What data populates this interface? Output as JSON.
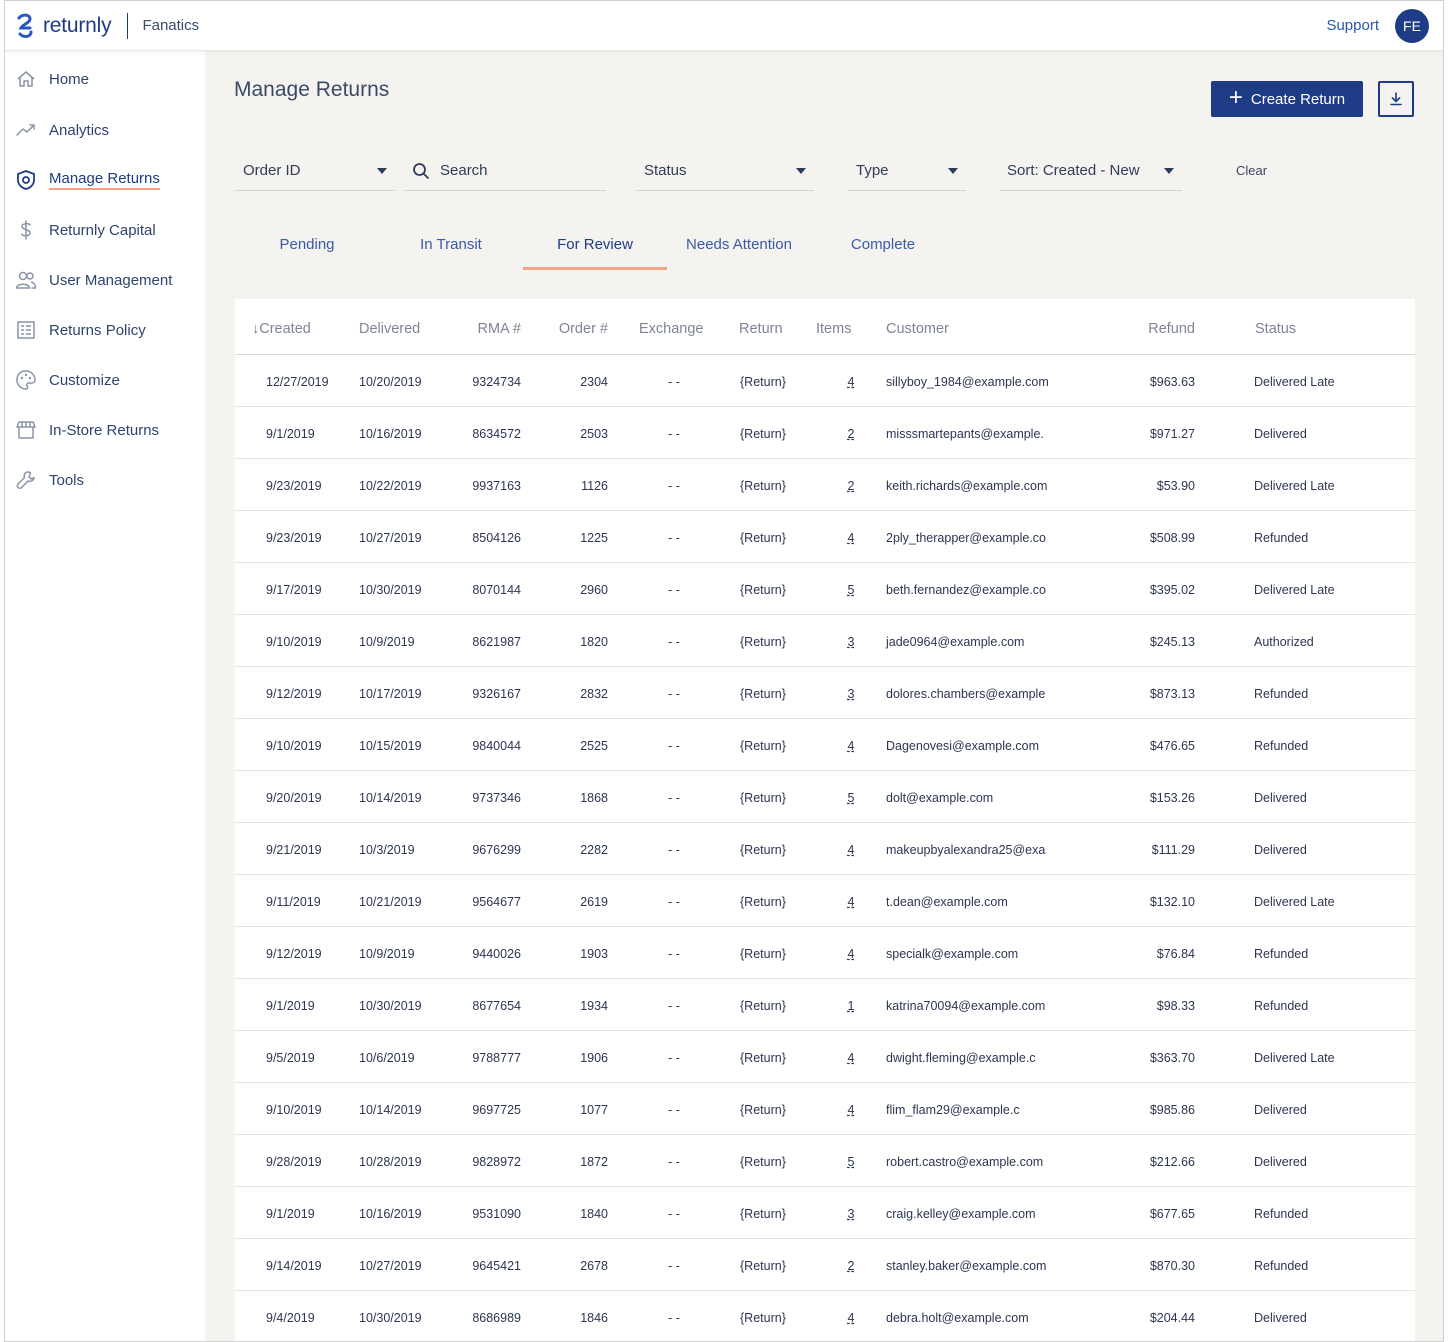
{
  "header": {
    "logo_text": "returnly",
    "brand": "Fanatics",
    "support_label": "Support",
    "avatar_initials": "FE"
  },
  "sidebar": {
    "items": [
      {
        "label": "Home",
        "icon": "home-icon"
      },
      {
        "label": "Analytics",
        "icon": "analytics-icon"
      },
      {
        "label": "Manage Returns",
        "icon": "shield-icon",
        "active": true
      },
      {
        "label": "Returnly Capital",
        "icon": "dollar-icon"
      },
      {
        "label": "User Management",
        "icon": "users-icon"
      },
      {
        "label": "Returns Policy",
        "icon": "policy-icon"
      },
      {
        "label": "Customize",
        "icon": "palette-icon"
      },
      {
        "label": "In-Store Returns",
        "icon": "store-icon"
      },
      {
        "label": "Tools",
        "icon": "wrench-icon"
      }
    ]
  },
  "main": {
    "title": "Manage Returns",
    "create_label": "Create Return",
    "filters": {
      "order_id": "Order ID",
      "search_placeholder": "Search",
      "status": "Status",
      "type": "Type",
      "sort": "Sort: Created - New",
      "clear": "Clear"
    },
    "tabs": [
      "Pending",
      "In Transit",
      "For Review",
      "Needs Attention",
      "Complete"
    ],
    "active_tab": "For Review"
  },
  "table": {
    "headers": {
      "created": "Created",
      "delivered": "Delivered",
      "rma": "RMA #",
      "order": "Order #",
      "exchange": "Exchange",
      "return": "Return",
      "items": "Items",
      "customer": "Customer",
      "refund": "Refund",
      "status": "Status"
    },
    "rows": [
      [
        "12/27/2019",
        "10/20/2019",
        "9324734",
        "2304",
        "- -",
        "{Return}",
        "4",
        "sillyboy_1984@example.com",
        "$963.63",
        "Delivered Late"
      ],
      [
        "9/1/2019",
        "10/16/2019",
        "8634572",
        "2503",
        "- -",
        "{Return}",
        "2",
        "misssmartepants@example.",
        "$971.27",
        "Delivered"
      ],
      [
        "9/23/2019",
        "10/22/2019",
        "9937163",
        "1126",
        "- -",
        "{Return}",
        "2",
        "keith.richards@example.com",
        "$53.90",
        "Delivered Late"
      ],
      [
        "9/23/2019",
        "10/27/2019",
        "8504126",
        "1225",
        "- -",
        "{Return}",
        "4",
        "2ply_therapper@example.co",
        "$508.99",
        "Refunded"
      ],
      [
        "9/17/2019",
        "10/30/2019",
        "8070144",
        "2960",
        "- -",
        "{Return}",
        "5",
        "beth.fernandez@example.co",
        "$395.02",
        "Delivered Late"
      ],
      [
        "9/10/2019",
        "10/9/2019",
        "8621987",
        "1820",
        "- -",
        "{Return}",
        "3",
        "jade0964@example.com",
        "$245.13",
        "Authorized"
      ],
      [
        "9/12/2019",
        "10/17/2019",
        "9326167",
        "2832",
        "- -",
        "{Return}",
        "3",
        "dolores.chambers@example",
        "$873.13",
        "Refunded"
      ],
      [
        "9/10/2019",
        "10/15/2019",
        "9840044",
        "2525",
        "- -",
        "{Return}",
        "4",
        "Dagenovesi@example.com",
        "$476.65",
        "Refunded"
      ],
      [
        "9/20/2019",
        "10/14/2019",
        "9737346",
        "1868",
        "- -",
        "{Return}",
        "5",
        "dolt@example.com",
        "$153.26",
        "Delivered"
      ],
      [
        "9/21/2019",
        "10/3/2019",
        "9676299",
        "2282",
        "- -",
        "{Return}",
        "4",
        "makeupbyalexandra25@exa",
        "$111.29",
        "Delivered"
      ],
      [
        "9/11/2019",
        "10/21/2019",
        "9564677",
        "2619",
        "- -",
        "{Return}",
        "4",
        "t.dean@example.com",
        "$132.10",
        "Delivered Late"
      ],
      [
        "9/12/2019",
        "10/9/2019",
        "9440026",
        "1903",
        "- -",
        "{Return}",
        "4",
        "specialk@example.com",
        "$76.84",
        "Refunded"
      ],
      [
        "9/1/2019",
        "10/30/2019",
        "8677654",
        "1934",
        "- -",
        "{Return}",
        "1",
        "katrina70094@example.com",
        "$98.33",
        "Refunded"
      ],
      [
        "9/5/2019",
        "10/6/2019",
        "9788777",
        "1906",
        "- -",
        "{Return}",
        "4",
        "dwight.fleming@example.c",
        "$363.70",
        "Delivered Late"
      ],
      [
        "9/10/2019",
        "10/14/2019",
        "9697725",
        "1077",
        "- -",
        "{Return}",
        "4",
        "flim_flam29@example.c",
        "$985.86",
        "Delivered"
      ],
      [
        "9/28/2019",
        "10/28/2019",
        "9828972",
        "1872",
        "- -",
        "{Return}",
        "5",
        "robert.castro@example.com",
        "$212.66",
        "Delivered"
      ],
      [
        "9/1/2019",
        "10/16/2019",
        "9531090",
        "1840",
        "- -",
        "{Return}",
        "3",
        "craig.kelley@example.com",
        "$677.65",
        "Refunded"
      ],
      [
        "9/14/2019",
        "10/27/2019",
        "9645421",
        "2678",
        "- -",
        "{Return}",
        "2",
        "stanley.baker@example.com",
        "$870.30",
        "Refunded"
      ],
      [
        "9/4/2019",
        "10/30/2019",
        "8686989",
        "1846",
        "- -",
        "{Return}",
        "4",
        "debra.holt@example.com",
        "$204.44",
        "Delivered"
      ]
    ]
  },
  "colors": {
    "primary": "#1e3c86",
    "accent": "#f3a486",
    "main_bg": "#f5f3ef"
  }
}
